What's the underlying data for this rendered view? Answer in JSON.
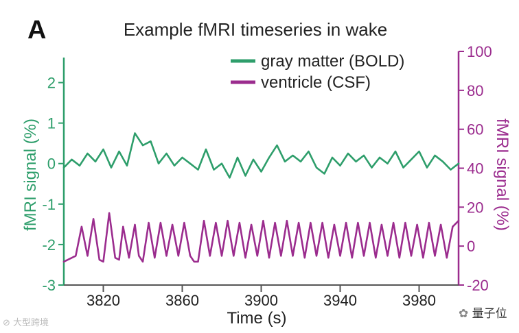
{
  "panel_letter": "A",
  "chart_data": {
    "type": "line",
    "title": "Example fMRI timeseries in wake",
    "xlabel": "Time (s)",
    "ylabel_left": "fMRI signal (%)",
    "ylabel_right": "fMRI signal (%)",
    "xlim": [
      3800,
      4000
    ],
    "ylim_left": [
      -3,
      2.5
    ],
    "ylim_right": [
      -20,
      100
    ],
    "x_ticks": [
      3820,
      3860,
      3900,
      3940,
      3980
    ],
    "y_ticks_left": [
      -3,
      -2,
      -1,
      0,
      1,
      2
    ],
    "y_ticks_right": [
      -20,
      0,
      20,
      40,
      60,
      80,
      100
    ],
    "legend_position": "top-right",
    "grid": false,
    "series": [
      {
        "name": "gray matter (BOLD)",
        "axis": "left",
        "color": "#2e9e6b",
        "x": [
          3800,
          3804,
          3808,
          3812,
          3816,
          3820,
          3824,
          3828,
          3832,
          3836,
          3840,
          3844,
          3848,
          3852,
          3856,
          3860,
          3864,
          3868,
          3872,
          3876,
          3880,
          3884,
          3888,
          3892,
          3896,
          3900,
          3904,
          3908,
          3912,
          3916,
          3920,
          3924,
          3928,
          3932,
          3936,
          3940,
          3944,
          3948,
          3952,
          3956,
          3960,
          3964,
          3968,
          3972,
          3976,
          3980,
          3984,
          3988,
          3992,
          3996,
          4000
        ],
        "values": [
          -0.1,
          0.1,
          -0.05,
          0.25,
          0.05,
          0.35,
          -0.1,
          0.3,
          -0.05,
          0.75,
          0.45,
          0.55,
          0.0,
          0.25,
          -0.05,
          0.15,
          0.0,
          -0.15,
          0.35,
          -0.15,
          0.0,
          -0.35,
          0.15,
          -0.3,
          0.1,
          -0.2,
          0.15,
          0.45,
          0.05,
          0.2,
          0.05,
          0.3,
          -0.1,
          -0.25,
          0.15,
          -0.05,
          0.25,
          0.05,
          0.2,
          -0.1,
          0.15,
          0.0,
          0.3,
          -0.1,
          0.1,
          0.3,
          -0.1,
          0.2,
          0.05,
          -0.15,
          0.0
        ]
      },
      {
        "name": "ventricle (CSF)",
        "axis": "right",
        "color": "#9b2c8e",
        "x": [
          3800,
          3806,
          3809,
          3812,
          3815,
          3818,
          3820,
          3823,
          3826,
          3828,
          3830,
          3833,
          3836,
          3838,
          3840,
          3843,
          3846,
          3849,
          3852,
          3855,
          3858,
          3861,
          3864,
          3866,
          3868,
          3871,
          3874,
          3877,
          3880,
          3883,
          3886,
          3889,
          3892,
          3895,
          3898,
          3901,
          3904,
          3907,
          3910,
          3913,
          3916,
          3919,
          3922,
          3925,
          3928,
          3931,
          3934,
          3937,
          3940,
          3943,
          3946,
          3949,
          3952,
          3955,
          3958,
          3961,
          3964,
          3967,
          3970,
          3973,
          3976,
          3979,
          3982,
          3985,
          3988,
          3991,
          3994,
          3997,
          4000
        ],
        "values": [
          -8,
          -5,
          10,
          -5,
          14,
          -7,
          -8,
          17,
          -6,
          -7,
          10,
          -6,
          11,
          -5,
          -8,
          12,
          -6,
          12,
          -5,
          11,
          -5,
          12,
          -5,
          -8,
          -8,
          13,
          -5,
          12,
          -5,
          13,
          -5,
          12,
          -6,
          11,
          -5,
          13,
          -6,
          12,
          -5,
          13,
          -5,
          12,
          -6,
          12,
          -5,
          12,
          -6,
          11,
          -5,
          12,
          -6,
          12,
          -5,
          12,
          -6,
          11,
          -5,
          12,
          -6,
          12,
          -5,
          11,
          -6,
          12,
          -5,
          11,
          -6,
          10,
          13
        ]
      }
    ]
  },
  "watermarks": {
    "left": "大型跨境",
    "right": "量子位"
  }
}
